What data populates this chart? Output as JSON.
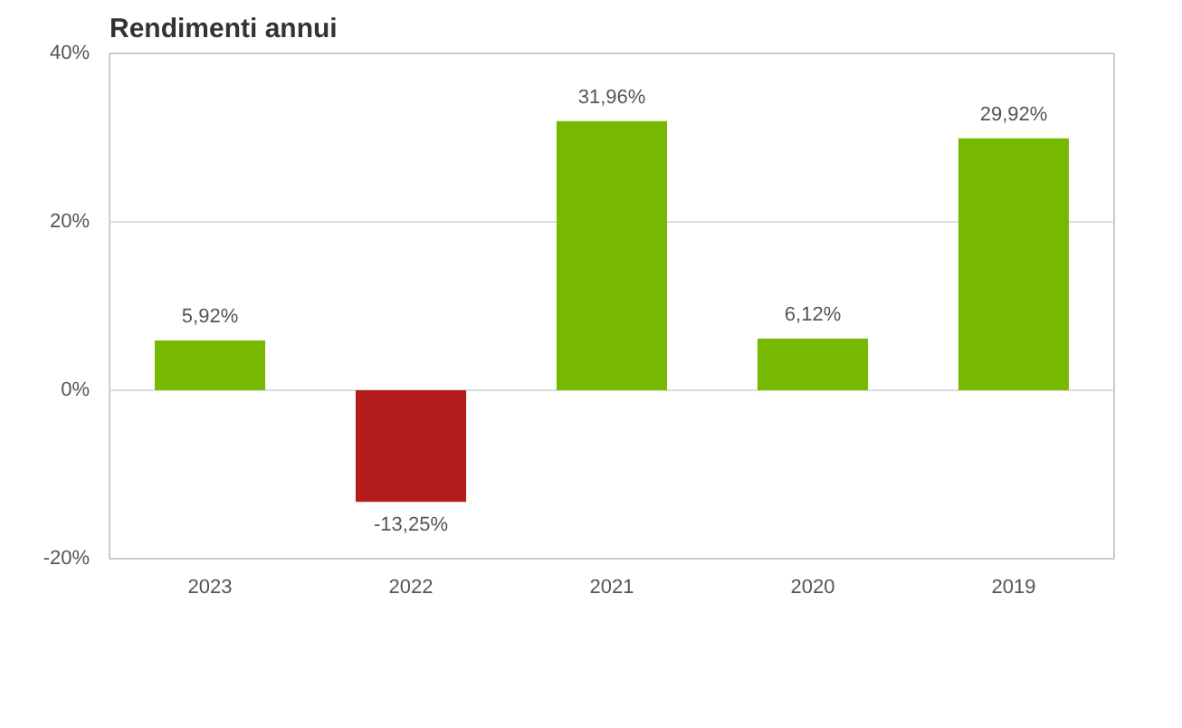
{
  "chart_data": {
    "type": "bar",
    "title": "Rendimenti annui",
    "categories": [
      "2023",
      "2022",
      "2021",
      "2020",
      "2019"
    ],
    "values": [
      5.92,
      -13.25,
      31.96,
      6.12,
      29.92
    ],
    "colors": [
      "#76b900",
      "#b51c1c",
      "#76b900",
      "#76b900",
      "#76b900"
    ],
    "value_labels": [
      "5,92%",
      "-13,25%",
      "31,96%",
      "6,12%",
      "29,92%"
    ],
    "ylim": [
      -20,
      40
    ],
    "yticks": [
      {
        "value": -20,
        "label": "-20%"
      },
      {
        "value": 0,
        "label": "0%"
      },
      {
        "value": 20,
        "label": "20%"
      },
      {
        "value": 40,
        "label": "40%"
      }
    ],
    "grid": "y"
  }
}
